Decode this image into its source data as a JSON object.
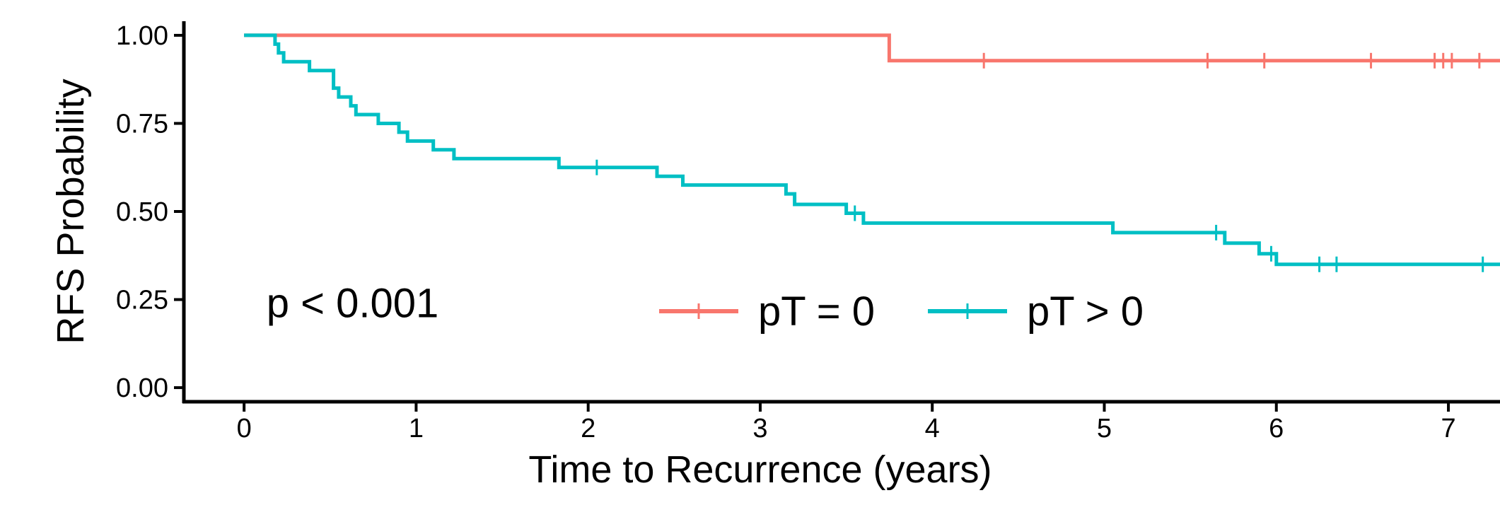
{
  "chart_data": {
    "type": "line",
    "title": "",
    "xlabel": "Time to Recurrence (years)",
    "ylabel": "RFS Probability",
    "xlim": [
      -0.35,
      7.3
    ],
    "ylim": [
      -0.04,
      1.04
    ],
    "x_ticks": [
      "0",
      "1",
      "2",
      "3",
      "4",
      "5",
      "6",
      "7"
    ],
    "y_ticks": [
      "0.00",
      "0.25",
      "0.50",
      "0.75",
      "1.00"
    ],
    "grid": false,
    "legend": "inside, lower center",
    "annotation": "p < 0.001",
    "series": [
      {
        "name": "pT = 0",
        "color": "#F8766D",
        "step_points": [
          [
            0,
            1.0
          ],
          [
            3.75,
            1.0
          ],
          [
            3.75,
            0.928
          ],
          [
            7.3,
            0.928
          ]
        ],
        "censor_x": [
          4.3,
          5.6,
          5.93,
          6.55,
          6.92,
          6.97,
          7.02,
          7.18
        ]
      },
      {
        "name": "pT > 0",
        "color": "#00BFC4",
        "step_points": [
          [
            0,
            1.0
          ],
          [
            0.18,
            1.0
          ],
          [
            0.18,
            0.975
          ],
          [
            0.2,
            0.975
          ],
          [
            0.2,
            0.95
          ],
          [
            0.23,
            0.95
          ],
          [
            0.23,
            0.925
          ],
          [
            0.38,
            0.925
          ],
          [
            0.38,
            0.9
          ],
          [
            0.52,
            0.9
          ],
          [
            0.52,
            0.85
          ],
          [
            0.55,
            0.85
          ],
          [
            0.55,
            0.825
          ],
          [
            0.62,
            0.825
          ],
          [
            0.62,
            0.8
          ],
          [
            0.65,
            0.8
          ],
          [
            0.65,
            0.775
          ],
          [
            0.78,
            0.775
          ],
          [
            0.78,
            0.75
          ],
          [
            0.9,
            0.75
          ],
          [
            0.9,
            0.725
          ],
          [
            0.95,
            0.725
          ],
          [
            0.95,
            0.7
          ],
          [
            1.1,
            0.7
          ],
          [
            1.1,
            0.675
          ],
          [
            1.22,
            0.675
          ],
          [
            1.22,
            0.65
          ],
          [
            1.83,
            0.65
          ],
          [
            1.83,
            0.625
          ],
          [
            2.4,
            0.625
          ],
          [
            2.4,
            0.6
          ],
          [
            2.55,
            0.6
          ],
          [
            2.55,
            0.575
          ],
          [
            3.15,
            0.575
          ],
          [
            3.15,
            0.55
          ],
          [
            3.2,
            0.55
          ],
          [
            3.2,
            0.52
          ],
          [
            3.5,
            0.52
          ],
          [
            3.5,
            0.495
          ],
          [
            3.6,
            0.495
          ],
          [
            3.6,
            0.467
          ],
          [
            5.05,
            0.467
          ],
          [
            5.05,
            0.44
          ],
          [
            5.7,
            0.44
          ],
          [
            5.7,
            0.41
          ],
          [
            5.9,
            0.41
          ],
          [
            5.9,
            0.38
          ],
          [
            6.0,
            0.38
          ],
          [
            6.0,
            0.35
          ],
          [
            7.3,
            0.35
          ]
        ],
        "censor_x": [
          2.05,
          3.55,
          5.65,
          5.97,
          6.25,
          6.35,
          7.2
        ]
      }
    ]
  }
}
